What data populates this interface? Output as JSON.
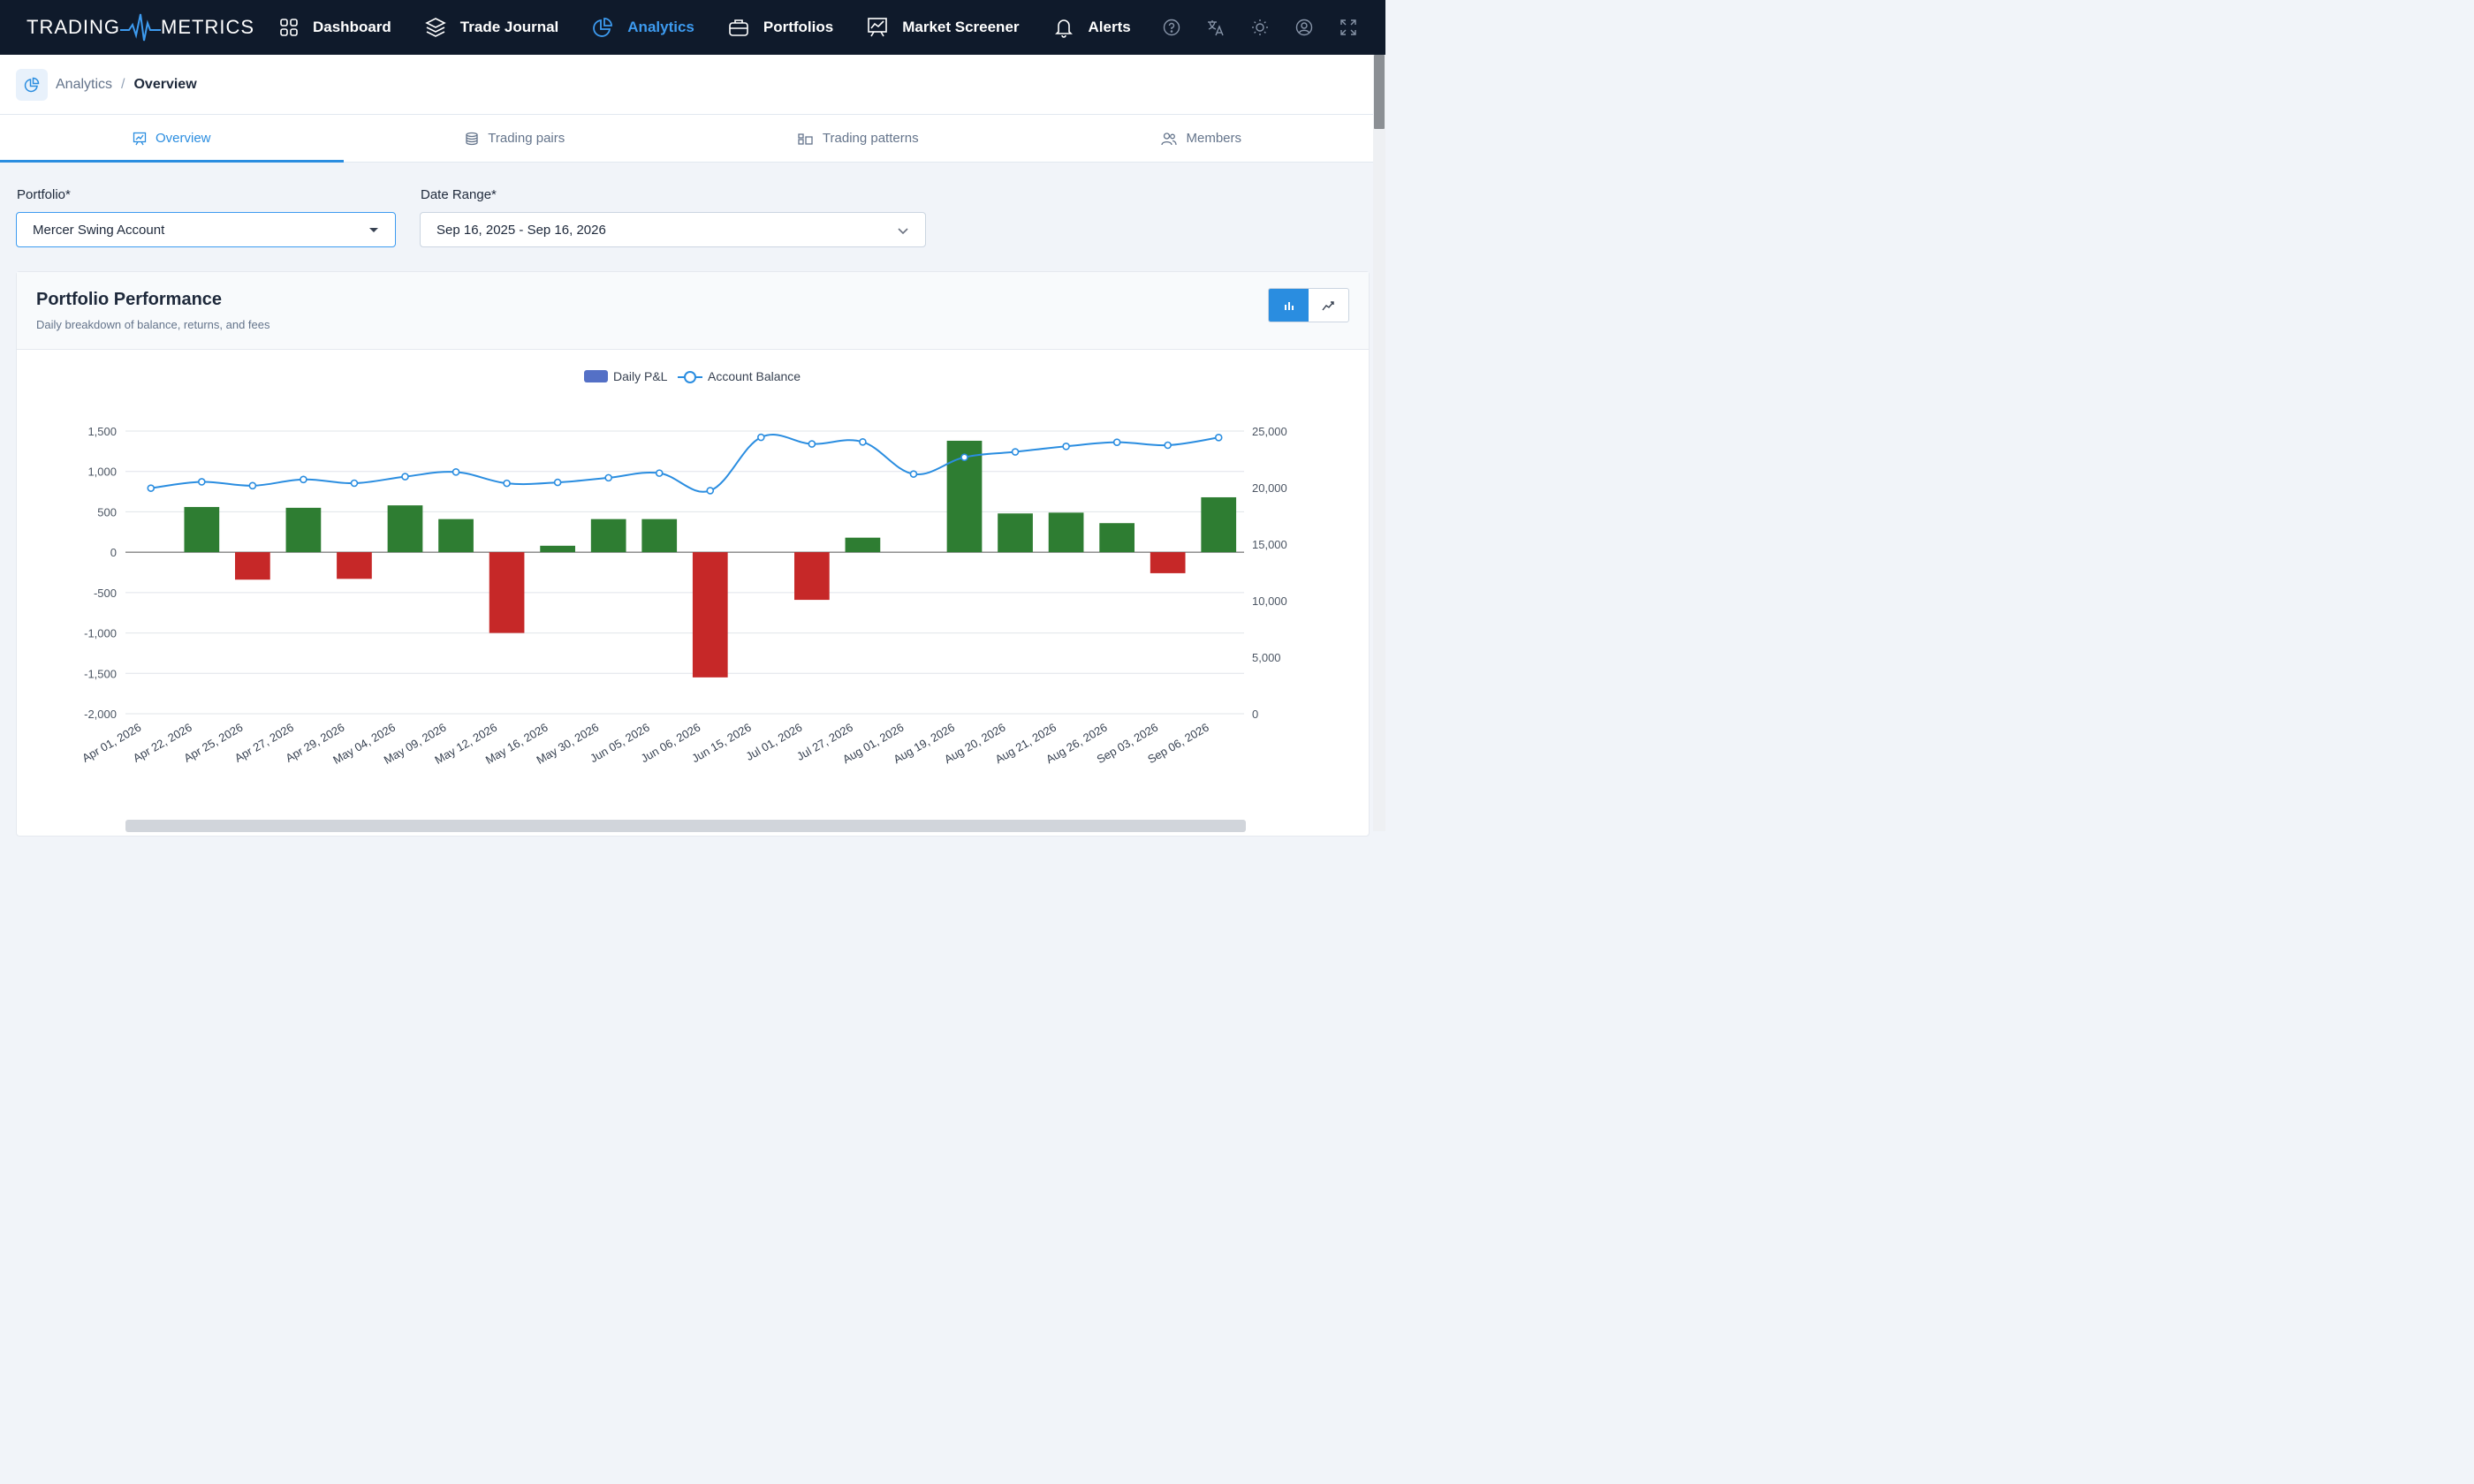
{
  "app": {
    "logo_left": "TRADING",
    "logo_right": "METRICS"
  },
  "nav": {
    "items": [
      {
        "label": "Dashboard",
        "icon": "grid-icon"
      },
      {
        "label": "Trade Journal",
        "icon": "layers-icon"
      },
      {
        "label": "Analytics",
        "icon": "pie-chart-icon",
        "active": true
      },
      {
        "label": "Portfolios",
        "icon": "briefcase-icon"
      },
      {
        "label": "Market Screener",
        "icon": "presentation-chart-icon"
      },
      {
        "label": "Alerts",
        "icon": "bell-icon"
      }
    ],
    "tools": [
      "help-icon",
      "translate-icon",
      "sun-icon",
      "user-icon",
      "fullscreen-icon"
    ]
  },
  "breadcrumb": {
    "parent": "Analytics",
    "separator": "/",
    "current": "Overview"
  },
  "tabs": [
    {
      "label": "Overview",
      "icon": "presentation-icon",
      "active": true
    },
    {
      "label": "Trading pairs",
      "icon": "database-icon"
    },
    {
      "label": "Trading patterns",
      "icon": "pattern-icon"
    },
    {
      "label": "Members",
      "icon": "users-icon"
    }
  ],
  "filters": {
    "portfolio_label": "Portfolio*",
    "portfolio_value": "Mercer Swing Account",
    "date_label": "Date Range*",
    "date_value": "Sep 16, 2025 - Sep 16, 2026"
  },
  "card": {
    "title": "Portfolio Performance",
    "subtitle": "Daily breakdown of balance, returns, and fees"
  },
  "colors": {
    "nav_bg": "#0f1a2b",
    "accent": "#2a8de0",
    "positive": "#2e7d32",
    "negative": "#c62828",
    "line": "#2a8de0",
    "legend_bar": "#5470c6"
  },
  "chart_data": {
    "type": "bar",
    "legend": [
      "Daily P&L",
      "Account Balance"
    ],
    "legend_placement": "top-center",
    "grid": true,
    "categories": [
      "Apr 01, 2026",
      "Apr 22, 2026",
      "Apr 25, 2026",
      "Apr 27, 2026",
      "Apr 29, 2026",
      "May 04, 2026",
      "May 09, 2026",
      "May 12, 2026",
      "May 16, 2026",
      "May 30, 2026",
      "Jun 05, 2026",
      "Jun 06, 2026",
      "Jun 15, 2026",
      "Jul 01, 2026",
      "Jul 27, 2026",
      "Aug 01, 2026",
      "Aug 19, 2026",
      "Aug 20, 2026",
      "Aug 21, 2026",
      "Aug 26, 2026",
      "Sep 03, 2026",
      "Sep 06, 2026"
    ],
    "series": [
      {
        "name": "Daily P&L",
        "type": "bar",
        "axis": "left",
        "values": [
          0,
          560,
          -340,
          550,
          -330,
          580,
          410,
          -1000,
          80,
          410,
          410,
          -1550,
          0,
          -590,
          180,
          0,
          1380,
          480,
          490,
          360,
          -260,
          680
        ]
      },
      {
        "name": "Account Balance",
        "type": "line",
        "axis": "right",
        "values": [
          19950,
          20510,
          20170,
          20720,
          20390,
          20970,
          21380,
          20380,
          20460,
          20870,
          21280,
          19730,
          24450,
          23860,
          24040,
          21200,
          22680,
          23160,
          23650,
          24010,
          23750,
          24430
        ]
      }
    ],
    "y_left": {
      "ticks": [
        1500,
        1000,
        500,
        0,
        -500,
        -1000,
        -1500,
        -2000
      ],
      "tick_labels": [
        "1,500",
        "1,000",
        "500",
        "0",
        "-500",
        "-1,000",
        "-1,500",
        "-2,000"
      ],
      "range": [
        -2000,
        1500
      ]
    },
    "y_right": {
      "ticks": [
        25000,
        20000,
        15000,
        10000,
        5000,
        0
      ],
      "tick_labels": [
        "25,000",
        "20,000",
        "15,000",
        "10,000",
        "5,000",
        "0"
      ],
      "range": [
        0,
        25000
      ]
    }
  }
}
